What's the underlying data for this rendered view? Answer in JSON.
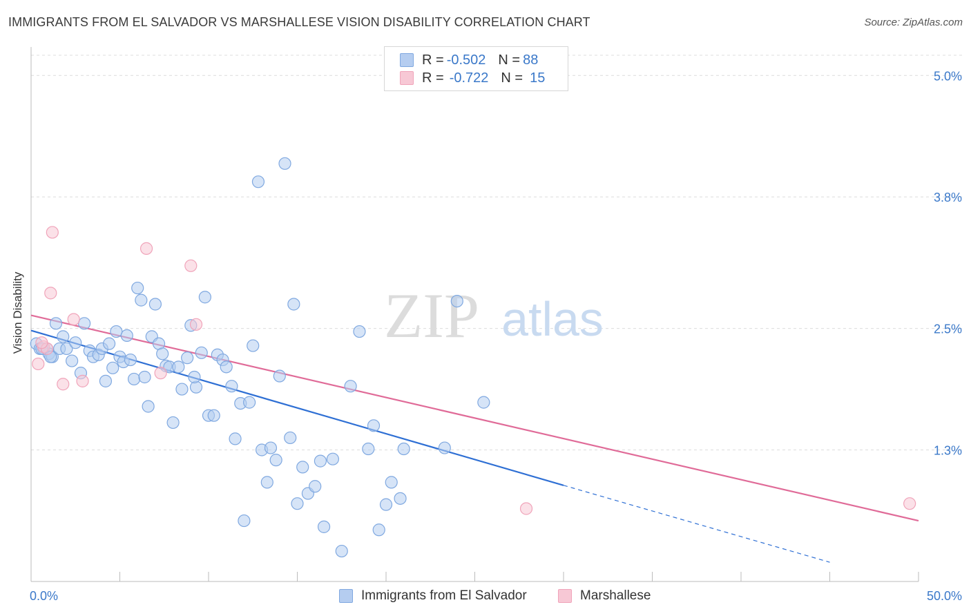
{
  "title": "IMMIGRANTS FROM EL SALVADOR VS MARSHALLESE VISION DISABILITY CORRELATION CHART",
  "source": "Source: ZipAtlas.com",
  "watermark": {
    "zip": "ZIP",
    "atlas": "atlas"
  },
  "legend_top": {
    "rows": [
      {
        "r_label": "R = ",
        "r_value": "-0.502",
        "n_label": "N = ",
        "n_value": "88"
      },
      {
        "r_label": "R = ",
        "r_value": "-0.722",
        "n_label": "N = ",
        "n_value": "15"
      }
    ]
  },
  "chart_data": {
    "type": "scatter",
    "title": "IMMIGRANTS FROM EL SALVADOR VS MARSHALLESE VISION DISABILITY CORRELATION CHART",
    "xlabel": "",
    "ylabel": "Vision Disability",
    "xlim": [
      0,
      50
    ],
    "ylim": [
      0,
      5.2
    ],
    "x_tick_labels": [
      "0.0%",
      "50.0%"
    ],
    "y_ticks": [
      1.3,
      2.5,
      3.8,
      5.0
    ],
    "y_tick_labels": [
      "1.3%",
      "2.5%",
      "3.8%",
      "5.0%"
    ],
    "grid": true,
    "legend_position": "bottom",
    "series": [
      {
        "name": "Immigrants from El Salvador",
        "color": "#7fa8e0",
        "fill": "#b5cdf0",
        "line_color": "#2e6fd4",
        "points": [
          [
            0.3,
            2.35
          ],
          [
            0.5,
            2.3
          ],
          [
            0.7,
            2.3
          ],
          [
            0.9,
            2.3
          ],
          [
            1.0,
            2.25
          ],
          [
            1.2,
            2.22
          ],
          [
            1.4,
            2.55
          ],
          [
            1.6,
            2.3
          ],
          [
            1.8,
            2.42
          ],
          [
            2.0,
            2.3
          ],
          [
            2.3,
            2.18
          ],
          [
            2.5,
            2.36
          ],
          [
            2.8,
            2.06
          ],
          [
            3.0,
            2.55
          ],
          [
            3.3,
            2.28
          ],
          [
            3.5,
            2.22
          ],
          [
            3.8,
            2.24
          ],
          [
            4.0,
            2.3
          ],
          [
            4.2,
            1.98
          ],
          [
            4.4,
            2.35
          ],
          [
            4.6,
            2.11
          ],
          [
            4.8,
            2.47
          ],
          [
            5.0,
            2.22
          ],
          [
            5.2,
            2.17
          ],
          [
            5.4,
            2.43
          ],
          [
            5.6,
            2.19
          ],
          [
            5.8,
            2.0
          ],
          [
            6.0,
            2.9
          ],
          [
            6.2,
            2.78
          ],
          [
            6.4,
            2.02
          ],
          [
            6.6,
            1.73
          ],
          [
            6.8,
            2.42
          ],
          [
            7.0,
            2.74
          ],
          [
            7.2,
            2.35
          ],
          [
            7.4,
            2.25
          ],
          [
            7.6,
            2.13
          ],
          [
            7.8,
            2.12
          ],
          [
            8.0,
            1.57
          ],
          [
            8.3,
            2.12
          ],
          [
            8.5,
            1.9
          ],
          [
            8.8,
            2.21
          ],
          [
            9.0,
            2.53
          ],
          [
            9.3,
            1.92
          ],
          [
            9.6,
            2.26
          ],
          [
            9.8,
            2.81
          ],
          [
            10.0,
            1.64
          ],
          [
            10.3,
            1.64
          ],
          [
            10.5,
            2.24
          ],
          [
            10.8,
            2.19
          ],
          [
            11.0,
            2.12
          ],
          [
            11.3,
            1.93
          ],
          [
            11.5,
            1.41
          ],
          [
            11.8,
            1.76
          ],
          [
            12.0,
            0.6
          ],
          [
            12.3,
            1.77
          ],
          [
            12.5,
            2.33
          ],
          [
            12.8,
            3.95
          ],
          [
            13.0,
            1.3
          ],
          [
            13.3,
            0.98
          ],
          [
            13.5,
            1.32
          ],
          [
            13.8,
            1.2
          ],
          [
            14.0,
            2.03
          ],
          [
            14.3,
            4.13
          ],
          [
            14.6,
            1.42
          ],
          [
            14.8,
            2.74
          ],
          [
            15.0,
            0.77
          ],
          [
            15.3,
            1.13
          ],
          [
            15.6,
            0.87
          ],
          [
            16.0,
            0.94
          ],
          [
            16.3,
            1.19
          ],
          [
            16.5,
            0.54
          ],
          [
            17.0,
            1.21
          ],
          [
            17.5,
            0.3
          ],
          [
            18.0,
            1.93
          ],
          [
            18.5,
            2.47
          ],
          [
            19.0,
            1.31
          ],
          [
            19.3,
            1.54
          ],
          [
            19.6,
            0.51
          ],
          [
            20.0,
            0.76
          ],
          [
            20.3,
            0.98
          ],
          [
            20.8,
            0.82
          ],
          [
            21.0,
            1.31
          ],
          [
            23.3,
            1.32
          ],
          [
            24.0,
            2.77
          ],
          [
            25.5,
            1.77
          ],
          [
            1.1,
            2.22
          ],
          [
            0.6,
            2.3
          ],
          [
            9.2,
            2.02
          ]
        ],
        "trend": {
          "x": [
            0,
            30
          ],
          "y": [
            2.48,
            0.95
          ]
        },
        "trend_dashed": {
          "x": [
            30,
            45
          ],
          "y": [
            0.95,
            0.19
          ]
        }
      },
      {
        "name": "Marshallese",
        "color": "#f0a3b9",
        "fill": "#f7c8d5",
        "line_color": "#e06b98",
        "points": [
          [
            0.4,
            2.15
          ],
          [
            0.7,
            2.32
          ],
          [
            0.9,
            2.3
          ],
          [
            1.2,
            3.45
          ],
          [
            1.1,
            2.85
          ],
          [
            1.8,
            1.95
          ],
          [
            2.4,
            2.59
          ],
          [
            2.9,
            1.98
          ],
          [
            6.5,
            3.29
          ],
          [
            7.3,
            2.06
          ],
          [
            9.0,
            3.12
          ],
          [
            9.3,
            2.54
          ],
          [
            27.9,
            0.72
          ],
          [
            49.5,
            0.77
          ],
          [
            0.6,
            2.36
          ]
        ],
        "trend": {
          "x": [
            0,
            50
          ],
          "y": [
            2.63,
            0.6
          ]
        }
      }
    ]
  },
  "bottom_legend": [
    {
      "label": "Immigrants from El Salvador"
    },
    {
      "label": "Marshallese"
    }
  ],
  "colors": {
    "blue_fill": "#b5cdf0",
    "blue_stroke": "#7fa8e0",
    "pink_fill": "#f7c8d5",
    "pink_stroke": "#f0a3b9",
    "blue_line": "#2e6fd4",
    "pink_line": "#e06b98",
    "tick_label": "#3a78c9",
    "grid": "#dcdcdc"
  }
}
